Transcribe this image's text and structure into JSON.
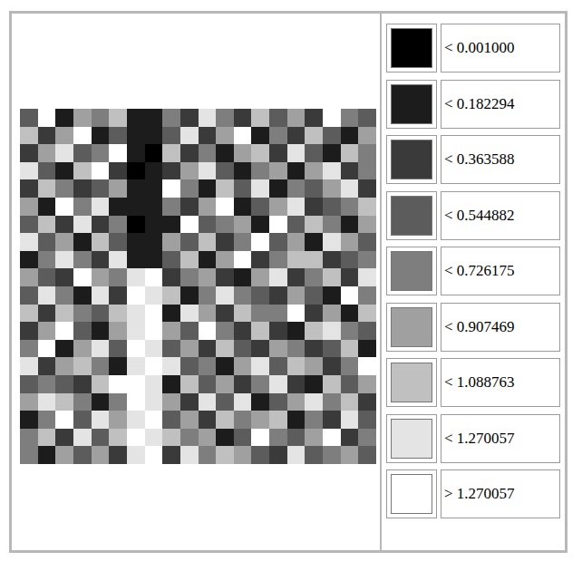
{
  "chart_data": {
    "type": "heatmap",
    "tick_labels": false,
    "zlim": [
      0,
      1.451351
    ],
    "colorbar_ticks": [
      {
        "value": 0.001,
        "label": "< 0.001000"
      },
      {
        "value": 0.182294,
        "label": "< 0.182294"
      },
      {
        "value": 0.363588,
        "label": "< 0.363588"
      },
      {
        "value": 0.544882,
        "label": "< 0.544882"
      },
      {
        "value": 0.726175,
        "label": "< 0.726175"
      },
      {
        "value": 0.907469,
        "label": "< 0.907469"
      },
      {
        "value": 1.088763,
        "label": "< 1.088763"
      },
      {
        "value": 1.270057,
        "label": "< 1.270057"
      },
      {
        "value": 1.270057,
        "label": "> 1.270057"
      }
    ],
    "colors": [
      "#000000",
      "#1c1c1c",
      "#3a3a3a",
      "#5c5c5c",
      "#7e7e7e",
      "#a0a0a0",
      "#c0c0c0",
      "#e4e4e4",
      "#ffffff"
    ],
    "z": [
      [
        0.42,
        1.31,
        0.15,
        0.88,
        0.63,
        1.02,
        0.05,
        0.12,
        0.71,
        0.34,
        1.18,
        0.56,
        0.27,
        0.95,
        0.48,
        0.81,
        0.22,
        1.35,
        0.6,
        0.39
      ],
      [
        0.97,
        0.28,
        0.74,
        1.29,
        0.09,
        0.53,
        0.02,
        0.08,
        0.44,
        1.12,
        0.31,
        0.79,
        1.4,
        0.18,
        0.66,
        0.25,
        0.92,
        0.47,
        0.13,
        0.84
      ],
      [
        0.19,
        0.86,
        1.21,
        0.37,
        0.68,
        1.33,
        0.1,
        0.0,
        0.91,
        0.23,
        0.58,
        0.07,
        0.76,
        1.05,
        0.33,
        1.27,
        0.52,
        0.14,
        0.99,
        0.61
      ],
      [
        1.15,
        0.45,
        0.06,
        0.93,
        1.38,
        0.26,
        0.0,
        0.11,
        0.36,
        0.82,
        1.24,
        0.49,
        0.17,
        0.64,
        0.89,
        0.04,
        0.73,
        1.09,
        0.3,
        0.55
      ],
      [
        0.32,
        1.07,
        0.67,
        0.21,
        0.5,
        0.87,
        0.13,
        0.03,
        1.3,
        0.59,
        0.16,
        0.98,
        0.43,
        1.22,
        0.11,
        0.7,
        0.38,
        0.8,
        1.16,
        0.24
      ],
      [
        0.78,
        0.14,
        1.36,
        0.57,
        1.11,
        0.03,
        0.06,
        0.15,
        0.62,
        0.29,
        0.85,
        1.32,
        0.08,
        0.51,
        0.77,
        1.19,
        0.2,
        0.46,
        0.69,
        1.03
      ],
      [
        0.54,
        0.94,
        0.35,
        1.2,
        0.27,
        0.72,
        0.0,
        0.09,
        0.18,
        1.37,
        0.41,
        0.65,
        0.9,
        0.12,
        1.28,
        0.37,
        0.96,
        0.57,
        0.05,
        0.83
      ],
      [
        1.26,
        0.38,
        0.81,
        0.1,
        0.96,
        0.44,
        0.14,
        0.04,
        0.85,
        0.53,
        1.06,
        0.22,
        0.61,
        1.34,
        0.47,
        0.76,
        0.15,
        1.13,
        0.88,
        0.4
      ],
      [
        0.07,
        0.7,
        1.17,
        0.64,
        0.35,
        1.25,
        0.08,
        0.16,
        0.47,
        0.97,
        0.12,
        0.74,
        1.39,
        0.31,
        0.59,
        0.93,
        1.08,
        0.26,
        0.5,
        0.71
      ],
      [
        0.89,
        0.5,
        0.24,
        1.34,
        0.75,
        0.58,
        1.21,
        1.33,
        0.28,
        0.66,
        0.9,
        0.36,
        0.05,
        0.82,
        1.14,
        0.19,
        0.63,
        0.99,
        0.34,
        1.23
      ],
      [
        0.46,
        1.14,
        0.6,
        0.02,
        1.09,
        0.33,
        1.38,
        1.16,
        0.95,
        0.13,
        0.55,
        1.26,
        0.72,
        0.4,
        0.24,
        0.87,
        0.44,
        0.09,
        1.31,
        0.62
      ],
      [
        1.01,
        0.21,
        0.92,
        0.71,
        0.4,
        0.99,
        1.27,
        1.42,
        0.06,
        1.2,
        0.77,
        0.3,
        0.98,
        0.57,
        0.69,
        1.35,
        0.28,
        0.75,
        0.17,
        0.94
      ],
      [
        0.29,
        0.83,
        1.28,
        0.48,
        0.16,
        0.78,
        1.12,
        1.3,
        0.74,
        0.43,
        1.32,
        0.61,
        0.19,
        1.04,
        0.36,
        0.08,
        0.91,
        1.21,
        0.58,
        0.45
      ],
      [
        0.65,
        1.39,
        0.11,
        0.85,
        1.23,
        0.41,
        1.35,
        1.1,
        0.52,
        0.89,
        0.2,
        1.07,
        0.48,
        0.27,
        0.86,
        0.62,
        0.34,
        0.53,
        1.0,
        0.15
      ],
      [
        1.19,
        0.32,
        0.76,
        1.03,
        0.55,
        0.14,
        1.18,
        1.41,
        1.22,
        0.37,
        0.68,
        0.04,
        0.83,
        1.16,
        0.5,
        0.97,
        0.73,
        0.22,
        0.67,
        1.29
      ],
      [
        0.37,
        0.68,
        0.45,
        0.26,
        0.92,
        1.3,
        1.29,
        1.24,
        0.16,
        1.01,
        0.45,
        0.84,
        0.35,
        0.7,
        1.24,
        0.29,
        0.11,
        1.06,
        0.41,
        0.79
      ],
      [
        0.84,
        1.22,
        0.98,
        0.67,
        0.08,
        0.6,
        1.37,
        1.15,
        0.79,
        0.25,
        1.13,
        0.53,
        1.25,
        0.09,
        0.42,
        0.8,
        1.2,
        0.64,
        0.96,
        0.23
      ],
      [
        0.12,
        0.55,
        1.33,
        0.39,
        1.17,
        0.87,
        1.09,
        1.36,
        0.43,
        0.73,
        0.31,
        0.95,
        0.66,
        0.89,
        1.02,
        0.18,
        0.58,
        0.32,
        1.11,
        0.52
      ],
      [
        0.72,
        0.96,
        0.27,
        1.12,
        0.47,
        1.05,
        1.4,
        1.19,
        1.07,
        0.56,
        0.82,
        0.14,
        0.39,
        1.3,
        0.63,
        0.49,
        0.85,
        1.37,
        0.26,
        0.7
      ],
      [
        0.58,
        0.17,
        0.83,
        0.54,
        0.74,
        0.31,
        1.25,
        1.32,
        0.35,
        1.19,
        0.62,
        1.04,
        0.78,
        0.46,
        0.21,
        1.1,
        0.4,
        0.71,
        0.87,
        0.44
      ]
    ]
  }
}
